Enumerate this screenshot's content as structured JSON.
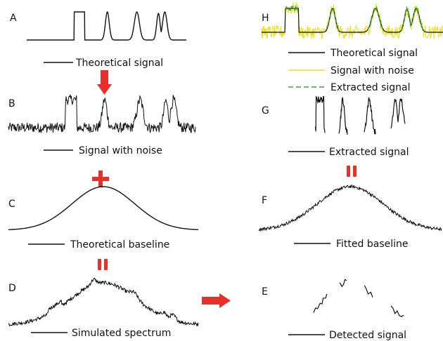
{
  "colors": {
    "curve": "#111111",
    "arrow": "#e8302a",
    "noisy": "#e8e01a",
    "extracted": "#3aa23a"
  },
  "panels": {
    "a": {
      "letter": "A",
      "caption": "Theoretical signal"
    },
    "b": {
      "letter": "B",
      "caption": "Signal with noise"
    },
    "c": {
      "letter": "C",
      "caption": "Theoretical baseline"
    },
    "d": {
      "letter": "D",
      "caption": "Simulated spectrum"
    },
    "e": {
      "letter": "E",
      "caption": "Detected signal"
    },
    "f": {
      "letter": "F",
      "caption": "Fitted baseline"
    },
    "g": {
      "letter": "G",
      "caption": "Extracted signal"
    },
    "h": {
      "letter": "H",
      "legend": [
        {
          "label": "Theoretical signal",
          "style": "solid-black"
        },
        {
          "label": "Signal with noise",
          "style": "solid-yellow"
        },
        {
          "label": "Extracted signal",
          "style": "dashed-green"
        }
      ]
    }
  },
  "operators": {
    "plus": "+",
    "equals": "="
  },
  "icons": [
    "down-arrow-icon",
    "right-arrow-icon",
    "plus-sign-icon",
    "equals-sign-icon"
  ]
}
